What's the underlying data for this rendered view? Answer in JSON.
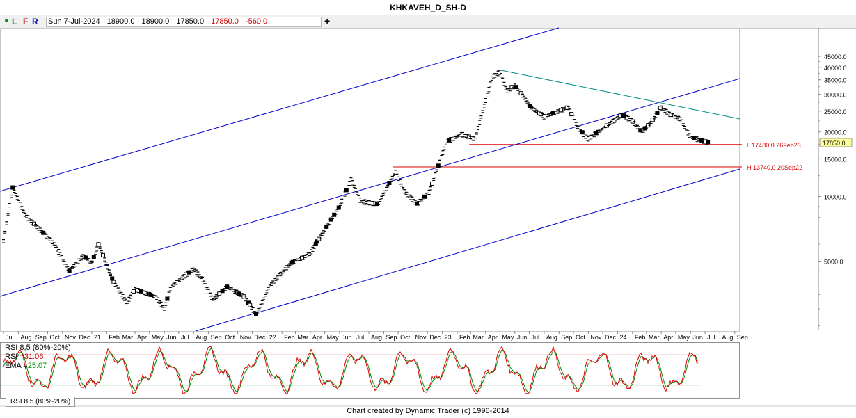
{
  "window": {
    "title": "KHKAVEH_D_SH-D"
  },
  "toolbar": {
    "buttons": [
      "L",
      "F",
      "R"
    ],
    "quote": {
      "date": "Sun 7-Jul-2024",
      "open": "18900.0",
      "high": "18900.0",
      "low": "17850.0",
      "close": "17850.0",
      "change": "-560.0"
    },
    "add_label": "+"
  },
  "colors": {
    "channel": "#0000cc",
    "trendline": "#008b8b",
    "level": "#dd0000",
    "rsi": "#dd0000",
    "ema": "#008800",
    "rsi_band_upper": "#cc0000",
    "rsi_band_lower": "#008800",
    "price_marker": "#ffff99"
  },
  "chart_data": [
    {
      "type": "bar",
      "scale": "log",
      "ylim": [
        2400,
        45000
      ],
      "y_ticks": [
        "45000.0",
        "40000.0",
        "35000.0",
        "30000.0",
        "25000.0",
        "20000.0",
        "15000.0",
        "10000.0",
        "5000.0"
      ],
      "x_ticks": [
        "Jul",
        "Aug",
        "Sep",
        "Oct",
        "Nov",
        "Dec",
        "21",
        "Feb",
        "Mar",
        "Apr",
        "May",
        "Jun",
        "Jul",
        "Aug",
        "Sep",
        "Oct",
        "Nov",
        "Dec",
        "22",
        "Feb",
        "Mar",
        "Apr",
        "May",
        "Jun",
        "Jul",
        "Aug",
        "Sep",
        "Oct",
        "Nov",
        "Dec",
        "23",
        "Feb",
        "Mar",
        "Apr",
        "May",
        "Jun",
        "Jul",
        "Aug",
        "Sep",
        "Oct",
        "Nov",
        "Dec",
        "24",
        "Feb",
        "Mar",
        "Apr",
        "May",
        "Jun",
        "Jul",
        "Aug",
        "Sep"
      ],
      "last_price": "17850.0",
      "price_path": [
        [
          "2020-07-01",
          6200
        ],
        [
          "2020-07-20",
          11000
        ],
        [
          "2020-08-15",
          8200
        ],
        [
          "2020-09-15",
          7000
        ],
        [
          "2020-10-15",
          6000
        ],
        [
          "2020-11-15",
          4500
        ],
        [
          "2020-12-15",
          5300
        ],
        [
          "2021-01-01",
          4900
        ],
        [
          "2021-01-15",
          6000
        ],
        [
          "2021-02-15",
          4000
        ],
        [
          "2021-03-15",
          3200
        ],
        [
          "2021-04-01",
          3700
        ],
        [
          "2021-04-30",
          3500
        ],
        [
          "2021-05-15",
          3400
        ],
        [
          "2021-06-01",
          3000
        ],
        [
          "2021-06-15",
          3800
        ],
        [
          "2021-07-15",
          4300
        ],
        [
          "2021-08-01",
          4600
        ],
        [
          "2021-08-20",
          4100
        ],
        [
          "2021-09-10",
          3300
        ],
        [
          "2021-10-10",
          3800
        ],
        [
          "2021-11-15",
          3400
        ],
        [
          "2021-12-10",
          2800
        ],
        [
          "2022-01-05",
          3800
        ],
        [
          "2022-01-31",
          4400
        ],
        [
          "2022-02-20",
          4900
        ],
        [
          "2022-03-10",
          5100
        ],
        [
          "2022-03-31",
          5400
        ],
        [
          "2022-05-01",
          7000
        ],
        [
          "2022-05-31",
          8900
        ],
        [
          "2022-06-25",
          12000
        ],
        [
          "2022-07-15",
          9500
        ],
        [
          "2022-08-20",
          9200
        ],
        [
          "2022-09-25",
          13000
        ],
        [
          "2022-10-15",
          10500
        ],
        [
          "2022-11-10",
          9200
        ],
        [
          "2022-12-05",
          10500
        ],
        [
          "2023-01-10",
          18000
        ],
        [
          "2023-02-10",
          19500
        ],
        [
          "2023-03-10",
          18500
        ],
        [
          "2023-04-15",
          36000
        ],
        [
          "2023-05-01",
          38000
        ],
        [
          "2023-05-15",
          31000
        ],
        [
          "2023-06-01",
          33000
        ],
        [
          "2023-07-05",
          26000
        ],
        [
          "2023-08-01",
          23500
        ],
        [
          "2023-09-01",
          25000
        ],
        [
          "2023-09-20",
          26000
        ],
        [
          "2023-10-10",
          21000
        ],
        [
          "2023-10-31",
          18500
        ],
        [
          "2023-12-05",
          21000
        ],
        [
          "2024-01-10",
          24000
        ],
        [
          "2024-01-31",
          22500
        ],
        [
          "2024-02-20",
          20000
        ],
        [
          "2024-03-10",
          22000
        ],
        [
          "2024-03-31",
          26000
        ],
        [
          "2024-04-20",
          24000
        ],
        [
          "2024-05-10",
          23000
        ],
        [
          "2024-05-31",
          19000
        ],
        [
          "2024-06-20",
          18300
        ],
        [
          "2024-07-07",
          17850
        ]
      ],
      "levels": [
        {
          "label": "L 17480.0 26Feb23",
          "value": 17480
        },
        {
          "label": "H 13740.0 20Sep22",
          "value": 13740
        }
      ]
    },
    {
      "type": "line",
      "title": "RSI 8,5 (80%-20%)",
      "series": [
        {
          "name": "RSI",
          "last_value": "31.06"
        },
        {
          "name": "EMA",
          "last_value": "25.07"
        }
      ],
      "bands": [
        80,
        20
      ]
    }
  ],
  "rsi_legend": {
    "title": "RSI 8,5 (80%-20%)",
    "rsi_label": "RSI =",
    "rsi_value": "31.06",
    "ema_label": "EMA =",
    "ema_value": "25.07"
  },
  "panel_tab": "RSI 8,5 (80%-20%)",
  "footer": "Chart created by Dynamic Trader  (c)  1996-2014"
}
